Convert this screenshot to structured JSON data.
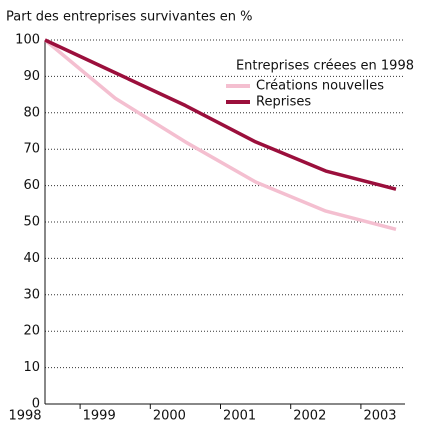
{
  "chart_data": {
    "type": "line",
    "title": "Part des entreprises survivantes en %",
    "legend_title": "Entreprises créees en 1998",
    "categories": [
      "1998",
      "1999",
      "2000",
      "2001",
      "2002",
      "2003"
    ],
    "series": [
      {
        "name": "Créations nouvelles",
        "color": "#f4bfd0",
        "values": [
          100,
          84,
          72,
          61,
          53,
          48
        ]
      },
      {
        "name": "Reprises",
        "color": "#9b0f3c",
        "values": [
          100,
          91,
          82,
          72,
          64,
          59
        ]
      }
    ],
    "ylim": [
      0,
      100
    ],
    "yticks": [
      0,
      10,
      20,
      30,
      40,
      50,
      60,
      70,
      80,
      90,
      100
    ],
    "grid": true
  }
}
